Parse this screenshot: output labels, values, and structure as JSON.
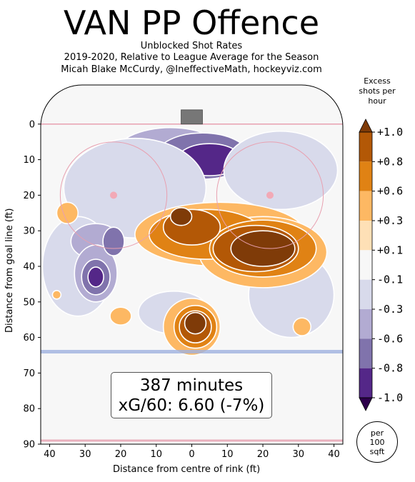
{
  "header": {
    "title": "VAN PP Offence",
    "subtitle": "Unblocked Shot Rates",
    "subtitle2": "2019-2020, Relative to League Average for the Season",
    "credit": "Micah Blake McCurdy, @IneffectiveMath, hockeyviz.com"
  },
  "chart_data": {
    "type": "heatmap",
    "title": "VAN PP Offence",
    "xlabel": "Distance from centre of rink (ft)",
    "ylabel": "Distance from goal line (ft)",
    "x_ticks": [
      "40",
      "30",
      "20",
      "10",
      "0",
      "10",
      "20",
      "30",
      "40"
    ],
    "y_ticks": [
      "0",
      "10",
      "20",
      "30",
      "40",
      "50",
      "60",
      "70",
      "80",
      "90"
    ],
    "xlim": [
      -42.5,
      42.5
    ],
    "ylim": [
      -11,
      90
    ],
    "colorbar": {
      "label": "Excess shots per hour",
      "ticks": [
        "+1.0",
        "+0.8",
        "+0.6",
        "+0.3",
        "+0.1",
        "-0.1",
        "-0.3",
        "-0.6",
        "-0.8",
        "-1.0"
      ],
      "colors": [
        "#7f3b08",
        "#b35806",
        "#e08214",
        "#fdb863",
        "#fee0b6",
        "#f7f7f7",
        "#d8daeb",
        "#b2abd2",
        "#8073ac",
        "#542788",
        "#2d004b"
      ]
    },
    "note": "per 100 sqft",
    "minutes_label": "387 minutes",
    "xg_label": "xG/60: 6.60 (-7%)",
    "blobs": [
      {
        "x": -6,
        "y": 9,
        "rx": 16,
        "ry": 8,
        "level": -0.35
      },
      {
        "x": 3,
        "y": 9,
        "rx": 13,
        "ry": 6.5,
        "level": -0.65
      },
      {
        "x": 5,
        "y": 10,
        "rx": 9,
        "ry": 4.5,
        "level": -0.85
      },
      {
        "x": -10,
        "y": 9,
        "rx": 4,
        "ry": 3,
        "level": -0.85
      },
      {
        "x": 25,
        "y": 13,
        "rx": 16,
        "ry": 11,
        "level": -0.15
      },
      {
        "x": -16,
        "y": 18,
        "rx": 20,
        "ry": 14,
        "level": -0.15
      },
      {
        "x": -32,
        "y": 40,
        "rx": 10,
        "ry": 14,
        "level": -0.15
      },
      {
        "x": -27,
        "y": 33,
        "rx": 7,
        "ry": 5,
        "level": -0.4
      },
      {
        "x": -27,
        "y": 42,
        "rx": 6,
        "ry": 8,
        "level": -0.4
      },
      {
        "x": -27,
        "y": 43,
        "rx": 4,
        "ry": 5,
        "level": -0.65
      },
      {
        "x": -27,
        "y": 43,
        "rx": 2.2,
        "ry": 2.8,
        "level": -0.85
      },
      {
        "x": -22,
        "y": 33,
        "rx": 3,
        "ry": 4,
        "level": -0.65
      },
      {
        "x": 28,
        "y": 48,
        "rx": 12,
        "ry": 12,
        "level": -0.15
      },
      {
        "x": -5,
        "y": 53,
        "rx": 10,
        "ry": 6,
        "level": -0.15
      },
      {
        "x": 8,
        "y": 31,
        "rx": 24,
        "ry": 9,
        "level": 0.2
      },
      {
        "x": 20,
        "y": 36,
        "rx": 18,
        "ry": 10,
        "level": 0.2
      },
      {
        "x": 4,
        "y": 31,
        "rx": 16,
        "ry": 7,
        "level": 0.45
      },
      {
        "x": 20,
        "y": 35,
        "rx": 15,
        "ry": 8,
        "level": 0.45
      },
      {
        "x": 0,
        "y": 29,
        "rx": 8,
        "ry": 5,
        "level": 0.7
      },
      {
        "x": 18,
        "y": 35,
        "rx": 12,
        "ry": 6.5,
        "level": 0.7
      },
      {
        "x": 20,
        "y": 35,
        "rx": 9,
        "ry": 5,
        "level": 0.9
      },
      {
        "x": -3,
        "y": 26,
        "rx": 3,
        "ry": 2.5,
        "level": 0.9
      },
      {
        "x": 0,
        "y": 57,
        "rx": 8,
        "ry": 8,
        "level": 0.2
      },
      {
        "x": 1,
        "y": 57,
        "rx": 6,
        "ry": 6,
        "level": 0.45
      },
      {
        "x": 1,
        "y": 57,
        "rx": 4.5,
        "ry": 4.5,
        "level": 0.7
      },
      {
        "x": 1,
        "y": 56,
        "rx": 3,
        "ry": 3,
        "level": 0.9
      },
      {
        "x": -35,
        "y": 25,
        "rx": 3,
        "ry": 3,
        "level": 0.2
      },
      {
        "x": -38,
        "y": 48,
        "rx": 1.2,
        "ry": 1.2,
        "level": 0.2
      },
      {
        "x": -20,
        "y": 54,
        "rx": 3,
        "ry": 2.5,
        "level": 0.2
      },
      {
        "x": 31,
        "y": 57,
        "rx": 2.5,
        "ry": 2.5,
        "level": 0.2
      }
    ]
  }
}
